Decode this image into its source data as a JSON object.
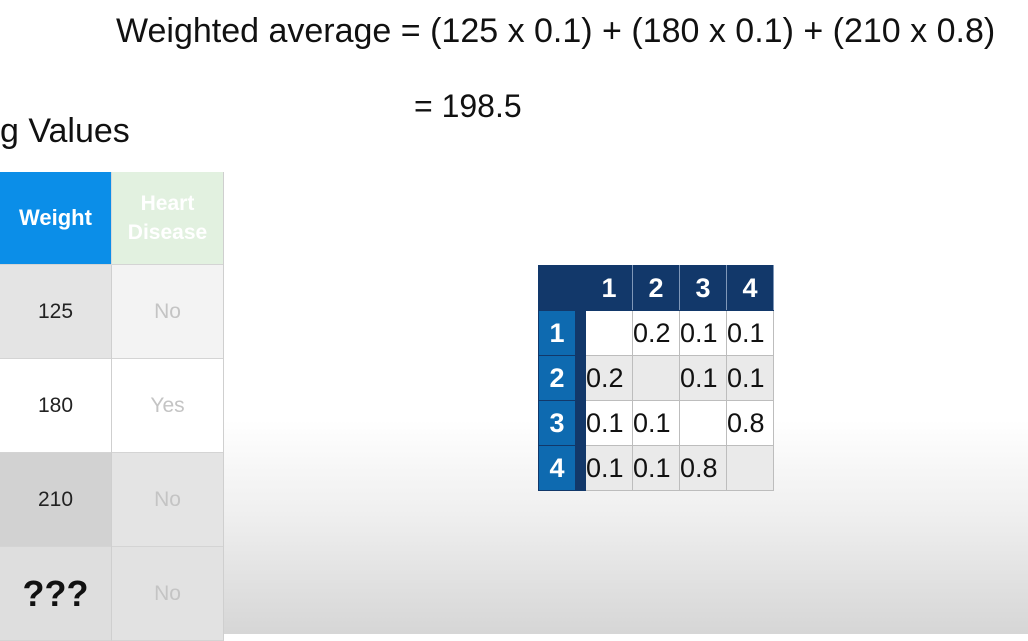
{
  "formula": "Weighted average = (125 x 0.1) + (180 x 0.1) + (210 x 0.8)",
  "result": "= 198.5",
  "heading": "g Values",
  "data_table": {
    "headers": {
      "weight": "Weight",
      "heart_line1": "Heart",
      "heart_line2": "Disease"
    },
    "rows": [
      {
        "weight": "125",
        "heart": "No"
      },
      {
        "weight": "180",
        "heart": "Yes"
      },
      {
        "weight": "210",
        "heart": "No"
      },
      {
        "weight": "???",
        "heart": "No"
      }
    ]
  },
  "matrix": {
    "col_headers": [
      "1",
      "2",
      "3",
      "4"
    ],
    "rows": [
      {
        "label": "1",
        "cells": [
          "",
          "0.2",
          "0.1",
          "0.1"
        ]
      },
      {
        "label": "2",
        "cells": [
          "0.2",
          "",
          "0.1",
          "0.1"
        ]
      },
      {
        "label": "3",
        "cells": [
          "0.1",
          "0.1",
          "",
          "0.8"
        ]
      },
      {
        "label": "4",
        "cells": [
          "0.1",
          "0.1",
          "0.8",
          ""
        ]
      }
    ]
  },
  "colors": {
    "weight_header": "#0b8ee8",
    "heart_header": "#e2f1e0",
    "matrix_header": "#12386a",
    "matrix_row_label": "#0e6ab0"
  }
}
